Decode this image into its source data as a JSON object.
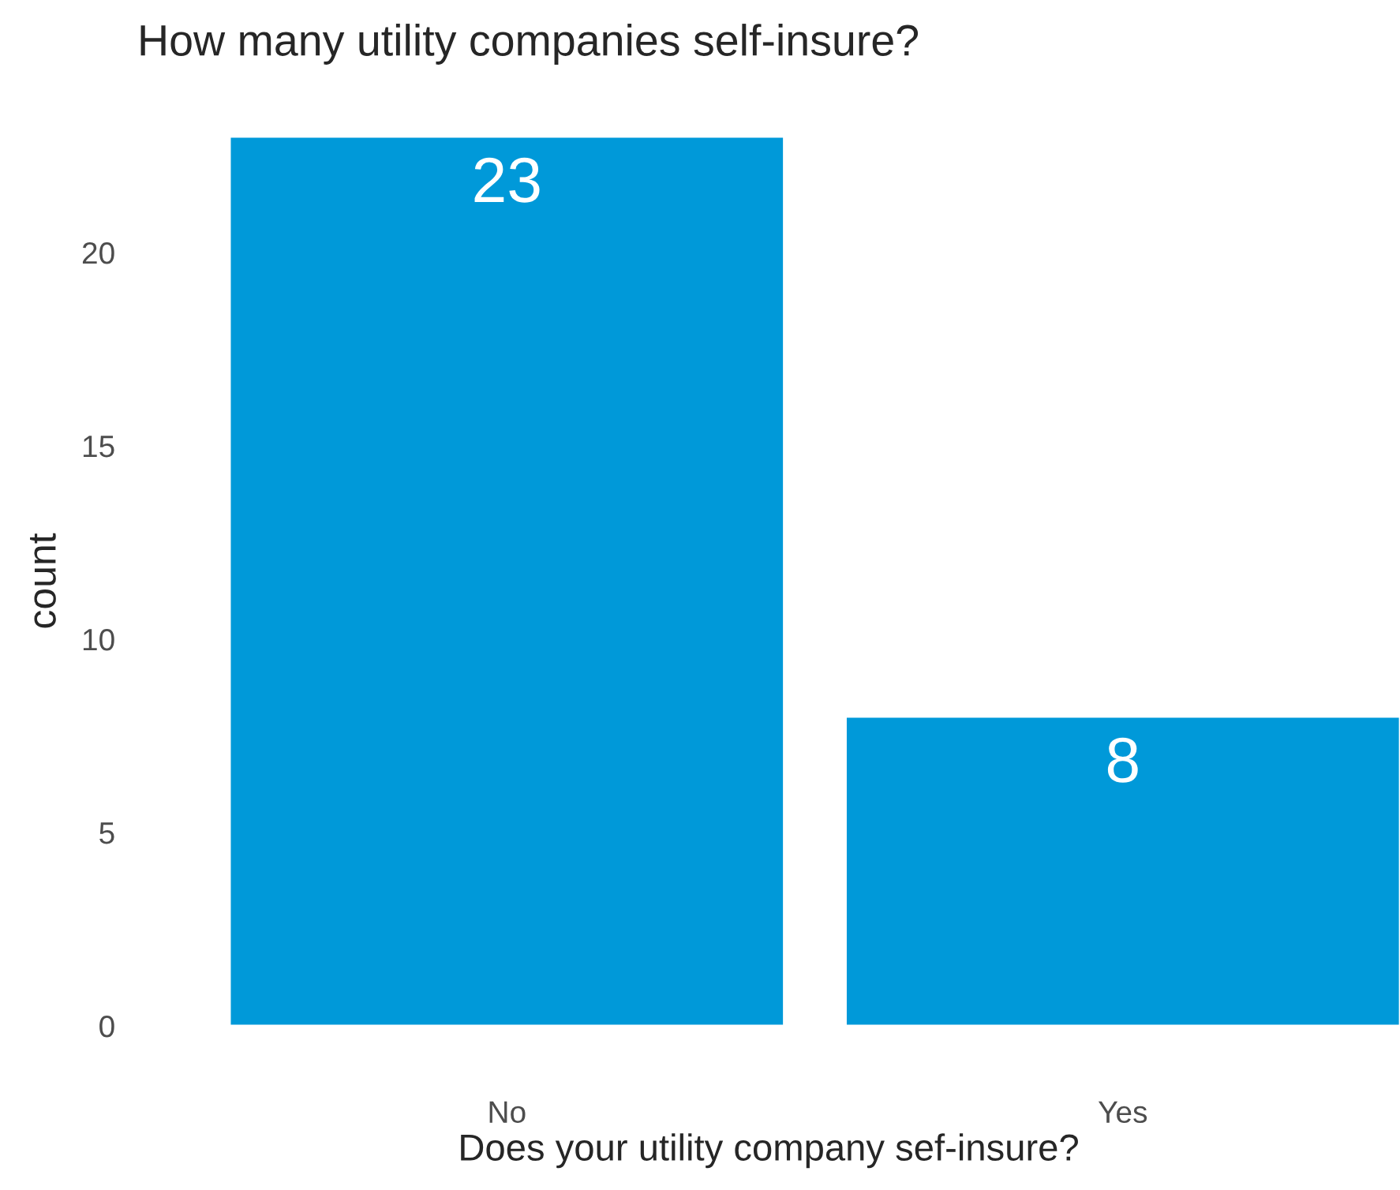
{
  "chart_data": {
    "type": "bar",
    "title": "How many utility companies self-insure?",
    "xlabel": "Does your utility company sef-insure?",
    "ylabel": "count",
    "categories": [
      "No",
      "Yes"
    ],
    "values": [
      23,
      8
    ],
    "color": "#0099d9",
    "ylim": [
      0,
      23
    ],
    "yticks": [
      0,
      5,
      10,
      15,
      20
    ],
    "grid": false,
    "data_labels": true
  }
}
